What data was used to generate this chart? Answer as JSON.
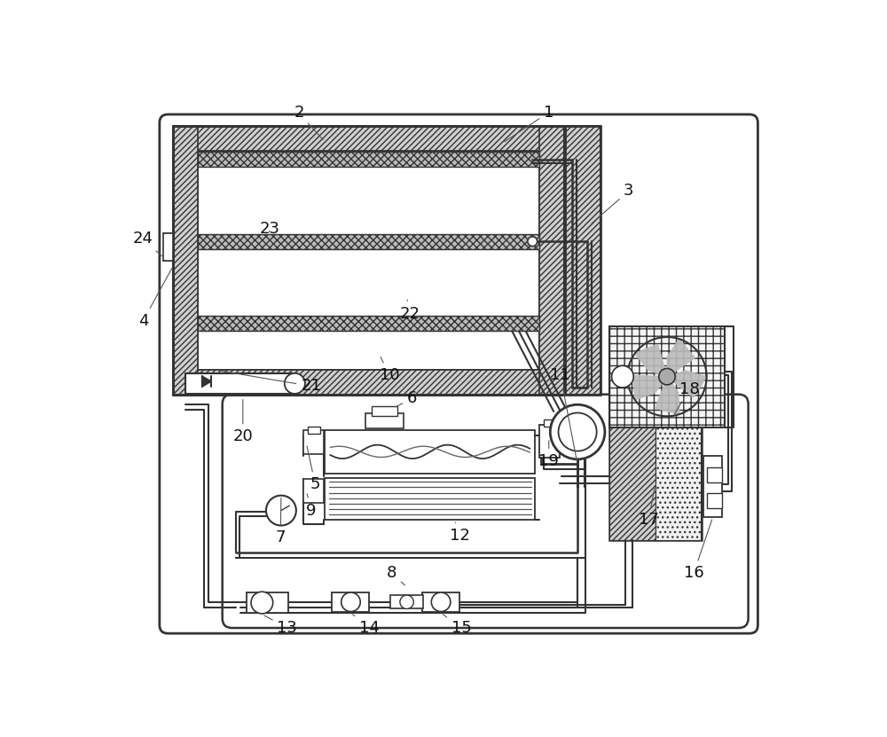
{
  "bg": "#ffffff",
  "lc": "#333333",
  "hfc": "#d0d0d0",
  "fig_w": 10.0,
  "fig_h": 8.31,
  "lfs": 13
}
